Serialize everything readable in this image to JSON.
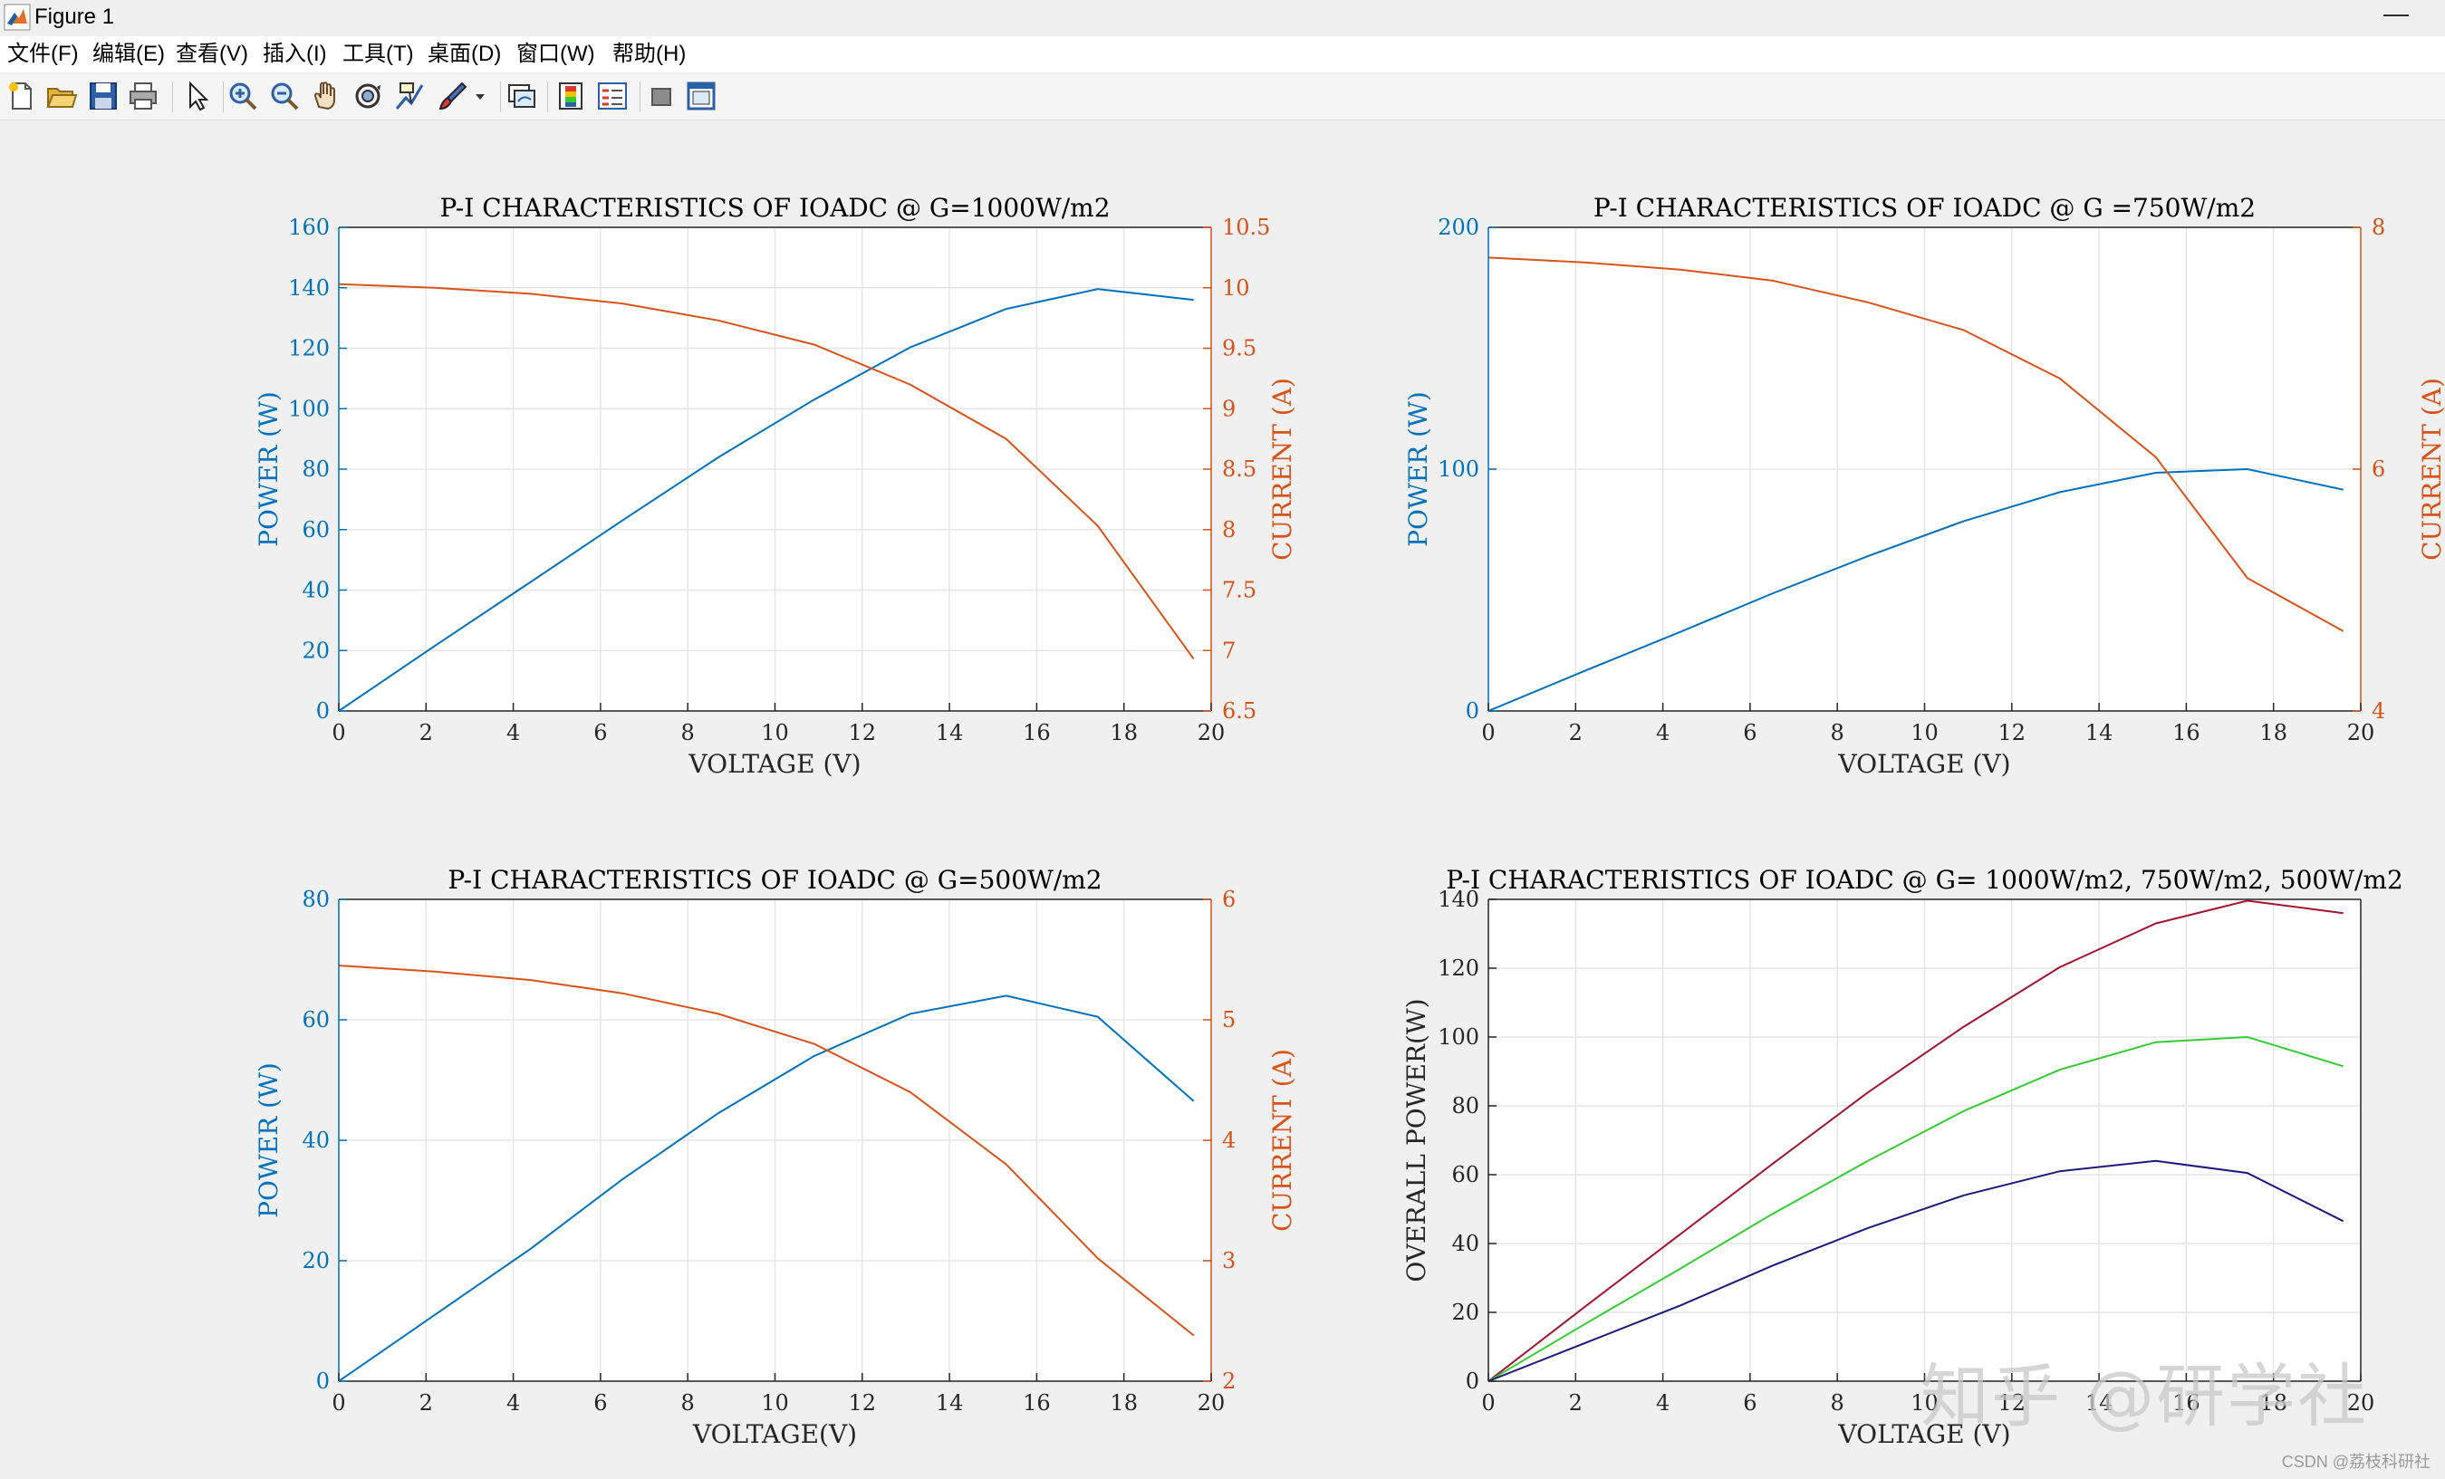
{
  "window": {
    "title": "Figure 1",
    "minimize_glyph": "—"
  },
  "menu": [
    "文件(F)",
    "编辑(E)",
    "查看(V)",
    "插入(I)",
    "工具(T)",
    "桌面(D)",
    "窗口(W)",
    "帮助(H)"
  ],
  "toolbar_icons": [
    "new-figure-icon",
    "open-file-icon",
    "save-icon",
    "print-icon",
    "pointer-icon",
    "zoom-in-icon",
    "zoom-out-icon",
    "pan-icon",
    "rotate-3d-icon",
    "data-cursor-icon",
    "brush-icon",
    "brush-dropdown-icon",
    "link-plot-icon",
    "colorbar-icon",
    "legend-icon",
    "hide-plot-tools-icon",
    "show-plot-tools-icon"
  ],
  "colors": {
    "left_axis": "#0072BD",
    "right_axis": "#D95319",
    "power_1000": "#A2142F",
    "power_750": "#33CC33",
    "power_500": "#1A1A80",
    "grid": "#e6e6e6"
  },
  "chart_data": [
    {
      "type": "line",
      "title": "P-I CHARACTERISTICS OF IOADC @ G=1000W/m2",
      "xlabel": "VOLTAGE (V)",
      "ylabel_left": "POWER (W)",
      "ylabel_right": "CURRENT (A)",
      "xlim": [
        0,
        20
      ],
      "ylim_left": [
        0,
        160
      ],
      "ylim_right": [
        6.5,
        10.5
      ],
      "xticks": [
        "0",
        "2",
        "4",
        "6",
        "8",
        "10",
        "12",
        "14",
        "16",
        "18",
        "20"
      ],
      "yticks_left": [
        "0",
        "20",
        "40",
        "60",
        "80",
        "100",
        "120",
        "140",
        "160"
      ],
      "yticks_right": [
        "6.5",
        "7",
        "7.5",
        "8",
        "8.5",
        "9",
        "9.5",
        "10",
        "10.5"
      ],
      "grid": true,
      "series": [
        {
          "axis": "left",
          "color": "#0072BD",
          "x": [
            0,
            2.2,
            4.4,
            6.5,
            8.7,
            10.9,
            13.1,
            15.3,
            17.4,
            19.6
          ],
          "y": [
            0,
            21.5,
            42.7,
            63,
            83.9,
            103,
            120.3,
            133,
            139.6,
            136
          ]
        },
        {
          "axis": "right",
          "color": "#D95319",
          "x": [
            0,
            2.2,
            4.4,
            6.5,
            8.7,
            10.9,
            13.1,
            15.3,
            17.4,
            19.6
          ],
          "y": [
            10.03,
            10.0,
            9.95,
            9.87,
            9.73,
            9.53,
            9.2,
            8.75,
            8.03,
            6.93
          ]
        }
      ]
    },
    {
      "type": "line",
      "title": "P-I CHARACTERISTICS OF IOADC @ G =750W/m2",
      "xlabel": "VOLTAGE (V)",
      "ylabel_left": "POWER (W)",
      "ylabel_right": "CURRENT (A)",
      "xlim": [
        0,
        20
      ],
      "ylim_left": [
        0,
        200
      ],
      "ylim_right": [
        4,
        8
      ],
      "xticks": [
        "0",
        "2",
        "4",
        "6",
        "8",
        "10",
        "12",
        "14",
        "16",
        "18",
        "20"
      ],
      "yticks_left": [
        "0",
        "100",
        "200"
      ],
      "yticks_right": [
        "4",
        "6",
        "8"
      ],
      "grid": true,
      "series": [
        {
          "axis": "left",
          "color": "#0072BD",
          "x": [
            0,
            2.2,
            4.4,
            6.5,
            8.7,
            10.9,
            13.1,
            15.3,
            17.4,
            19.6
          ],
          "y": [
            0,
            16.5,
            32.7,
            48.5,
            64,
            78.5,
            90.5,
            98.5,
            100,
            91.5
          ]
        },
        {
          "axis": "right",
          "color": "#D95319",
          "x": [
            0,
            2.2,
            4.4,
            6.5,
            8.7,
            10.9,
            13.1,
            15.3,
            17.4,
            19.6
          ],
          "y": [
            7.75,
            7.71,
            7.65,
            7.56,
            7.38,
            7.15,
            6.75,
            6.1,
            5.1,
            4.66
          ]
        }
      ]
    },
    {
      "type": "line",
      "title": "P-I CHARACTERISTICS OF IOADC @ G=500W/m2",
      "xlabel": "VOLTAGE(V)",
      "ylabel_left": "POWER (W)",
      "ylabel_right": "CURRENT (A)",
      "xlim": [
        0,
        20
      ],
      "ylim_left": [
        0,
        80
      ],
      "ylim_right": [
        2,
        6
      ],
      "xticks": [
        "0",
        "2",
        "4",
        "6",
        "8",
        "10",
        "12",
        "14",
        "16",
        "18",
        "20"
      ],
      "yticks_left": [
        "0",
        "20",
        "40",
        "60",
        "80"
      ],
      "yticks_right": [
        "2",
        "3",
        "4",
        "5",
        "6"
      ],
      "grid": true,
      "series": [
        {
          "axis": "left",
          "color": "#0072BD",
          "x": [
            0,
            2.2,
            4.4,
            6.5,
            8.7,
            10.9,
            13.1,
            15.3,
            17.4,
            19.6
          ],
          "y": [
            0,
            11,
            22,
            33.5,
            44.5,
            54,
            61,
            64,
            60.5,
            46.5
          ]
        },
        {
          "axis": "right",
          "color": "#D95319",
          "x": [
            0,
            2.2,
            4.4,
            6.5,
            8.7,
            10.9,
            13.1,
            15.3,
            17.4,
            19.6
          ],
          "y": [
            5.45,
            5.4,
            5.33,
            5.22,
            5.05,
            4.8,
            4.4,
            3.8,
            3.02,
            2.38
          ]
        }
      ]
    },
    {
      "type": "line",
      "title": "P-I CHARACTERISTICS OF IOADC @ G= 1000W/m2, 750W/m2, 500W/m2",
      "xlabel": "VOLTAGE (V)",
      "ylabel_left": "OVERALL POWER(W)",
      "ylabel_right": "",
      "xlim": [
        0,
        20
      ],
      "ylim_left": [
        0,
        140
      ],
      "xticks": [
        "0",
        "2",
        "4",
        "6",
        "8",
        "10",
        "12",
        "14",
        "16",
        "18",
        "20"
      ],
      "yticks_left": [
        "0",
        "20",
        "40",
        "60",
        "80",
        "100",
        "120",
        "140"
      ],
      "yticks_right": [],
      "grid": true,
      "series": [
        {
          "axis": "left",
          "color": "#A2142F",
          "x": [
            0,
            2.2,
            4.4,
            6.5,
            8.7,
            10.9,
            13.1,
            15.3,
            17.4,
            19.6
          ],
          "y": [
            0,
            21.5,
            42.7,
            63,
            83.9,
            103,
            120.3,
            133,
            139.6,
            136
          ]
        },
        {
          "axis": "left",
          "color": "#33CC33",
          "x": [
            0,
            2.2,
            4.4,
            6.5,
            8.7,
            10.9,
            13.1,
            15.3,
            17.4,
            19.6
          ],
          "y": [
            0,
            16.5,
            32.7,
            48.5,
            64,
            78.5,
            90.5,
            98.5,
            100,
            91.5
          ]
        },
        {
          "axis": "left",
          "color": "#1A1A80",
          "x": [
            0,
            2.2,
            4.4,
            6.5,
            8.7,
            10.9,
            13.1,
            15.3,
            17.4,
            19.6
          ],
          "y": [
            0,
            11,
            22,
            33.5,
            44.5,
            54,
            61,
            64,
            60.5,
            46.5
          ]
        }
      ]
    }
  ],
  "watermark": "知乎 @研学社",
  "csdn_mark": "CSDN @荔枝科研社"
}
